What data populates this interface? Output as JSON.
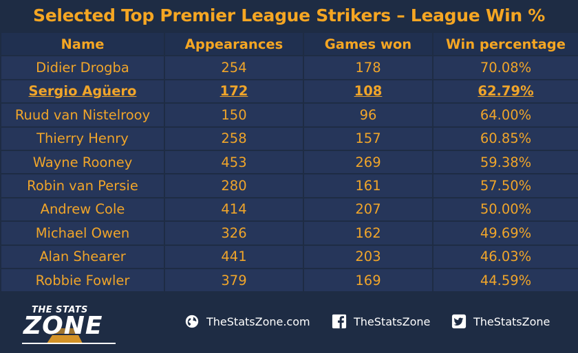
{
  "title": "Selected Top Premier League Strikers – League Win %",
  "columns": [
    "Name",
    "Appearances",
    "Games won",
    "Win percentage"
  ],
  "rows": [
    {
      "name": "Didier Drogba",
      "appearances": "254",
      "won": "178",
      "pct": "70.08%"
    },
    {
      "name": "Sergio Agüero",
      "appearances": "172",
      "won": "108",
      "pct": "62.79%"
    },
    {
      "name": "Ruud van Nistelrooy",
      "appearances": "150",
      "won": "96",
      "pct": "64.00%"
    },
    {
      "name": "Thierry Henry",
      "appearances": "258",
      "won": "157",
      "pct": "60.85%"
    },
    {
      "name": "Wayne Rooney",
      "appearances": "453",
      "won": "269",
      "pct": "59.38%"
    },
    {
      "name": "Robin van Persie",
      "appearances": "280",
      "won": "161",
      "pct": "57.50%"
    },
    {
      "name": "Andrew Cole",
      "appearances": "414",
      "won": "207",
      "pct": "50.00%"
    },
    {
      "name": "Michael Owen",
      "appearances": "326",
      "won": "162",
      "pct": "49.69%"
    },
    {
      "name": "Alan Shearer",
      "appearances": "441",
      "won": "203",
      "pct": "46.03%"
    },
    {
      "name": "Robbie Fowler",
      "appearances": "379",
      "won": "169",
      "pct": "44.59%"
    }
  ],
  "highlight_row": 1,
  "footer": {
    "logo_top": "THE STATS",
    "logo_main": "ZONE",
    "website_icon": "globe-icon",
    "website": "TheStatsZone.com",
    "facebook_icon": "facebook-icon",
    "facebook": "TheStatsZone",
    "twitter_icon": "twitter-icon",
    "twitter": "TheStatsZone"
  },
  "colors": {
    "accent": "#f5a623",
    "background": "#1e2c44",
    "cell": "#26365a"
  },
  "chart_data": {
    "type": "table",
    "title": "Selected Top Premier League Strikers – League Win %",
    "columns": [
      "Name",
      "Appearances",
      "Games won",
      "Win percentage"
    ],
    "rows": [
      [
        "Didier Drogba",
        254,
        178,
        "70.08%"
      ],
      [
        "Sergio Agüero",
        172,
        108,
        "62.79%"
      ],
      [
        "Ruud van Nistelrooy",
        150,
        96,
        "64.00%"
      ],
      [
        "Thierry Henry",
        258,
        157,
        "60.85%"
      ],
      [
        "Wayne Rooney",
        453,
        269,
        "59.38%"
      ],
      [
        "Robin van Persie",
        280,
        161,
        "57.50%"
      ],
      [
        "Andrew Cole",
        414,
        207,
        "50.00%"
      ],
      [
        "Michael Owen",
        326,
        162,
        "49.69%"
      ],
      [
        "Alan Shearer",
        441,
        203,
        "46.03%"
      ],
      [
        "Robbie Fowler",
        379,
        169,
        "44.59%"
      ]
    ]
  }
}
